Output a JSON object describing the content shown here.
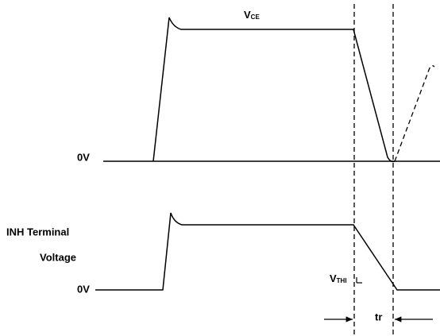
{
  "top_signal": {
    "label": {
      "main": "V",
      "sub": "CE"
    },
    "zero_label": "0V"
  },
  "bottom_signal": {
    "label_line1": "INH Terminal",
    "label_line2": "Voltage",
    "zero_label": "0V",
    "threshold_label": {
      "main": "V",
      "sub": "THI"
    }
  },
  "interval_label": "tr"
}
